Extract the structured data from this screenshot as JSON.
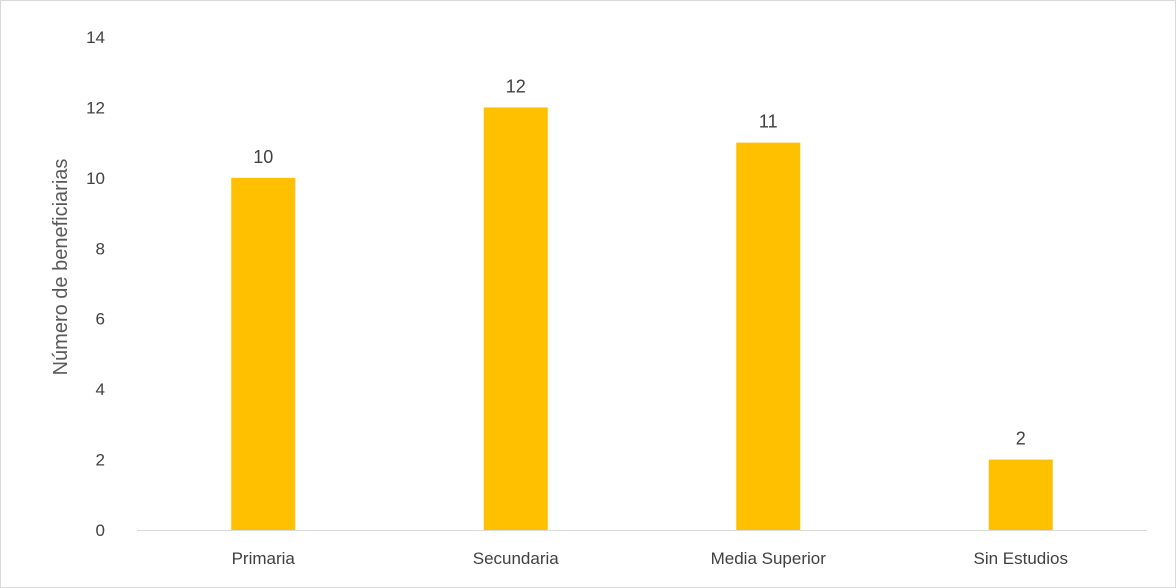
{
  "chart_data": {
    "type": "bar",
    "title": "",
    "xlabel": "",
    "ylabel": "Número de beneficiarias",
    "categories": [
      "Primaria",
      "Secundaria",
      "Media Superior",
      "Sin Estudios"
    ],
    "values": [
      10,
      12,
      11,
      2
    ],
    "data_labels": [
      "10",
      "12",
      "11",
      "2"
    ],
    "ylim": [
      0,
      14
    ],
    "yticks": [
      "0",
      "2",
      "4",
      "6",
      "8",
      "10",
      "12",
      "14"
    ],
    "grid": false,
    "legend": "none",
    "bar_color": "#FFC000",
    "axis_color": "#d9d9d9"
  }
}
